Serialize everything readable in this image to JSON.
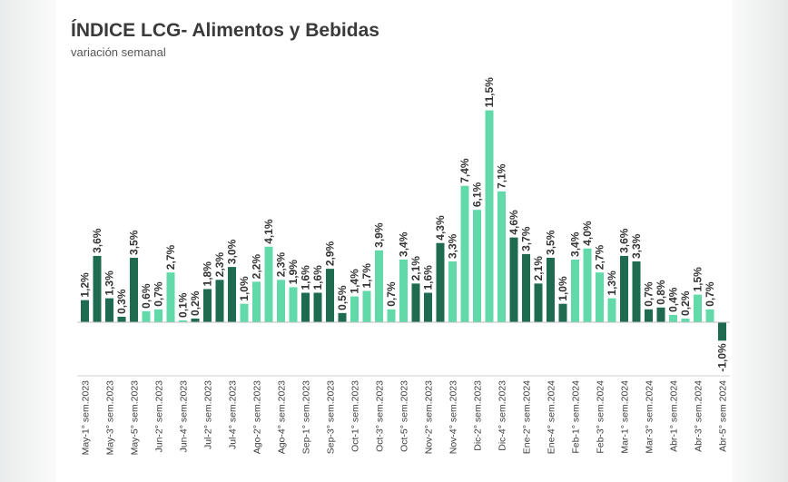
{
  "chart_data": {
    "type": "bar",
    "title": "ÍNDICE LCG- Alimentos y Bebidas",
    "subtitle": "variación semanal",
    "xlabel": "",
    "ylabel": "",
    "ylim": [
      -1.5,
      12
    ],
    "grid": false,
    "legend": "none",
    "colors": {
      "dark": "#1e6b4f",
      "light": "#62d9a9"
    },
    "categories": [
      "May-1° sem.2023",
      "",
      "May-3° sem.2023",
      "",
      "May-5° sem.2023",
      "",
      "Jun-2° sem.2023",
      "",
      "Jun-4° sem.2023",
      "",
      "Jul-2° sem.2023",
      "",
      "Jul-4° sem.2023",
      "",
      "Ago-2° sem.2023",
      "",
      "Ago-4° sem.2023",
      "",
      "Sep-1° sem.2023",
      "",
      "Sep-3° sem.2023",
      "",
      "Oct-1° sem.2023",
      "",
      "Oct-3° sem.2023",
      "",
      "Oct-5° sem.2023",
      "",
      "Nov-2° sem.2023",
      "",
      "Nov-4° sem.2023",
      "",
      "Dic-2° sem.2023",
      "",
      "Dic-4° sem.2023",
      "",
      "Ene-2° sem.2024",
      "",
      "Ene-4° sem.2024",
      "",
      "Feb-1° sem.2024",
      "",
      "Feb-3° sem.2024",
      "",
      "Mar-1° sem.2024",
      "",
      "Mar-3° sem.2024",
      "",
      "Abr-1° sem.2024",
      "",
      "Abr-3° sem.2024",
      "",
      "Abr-5° sem 2024"
    ],
    "values": [
      1.2,
      3.6,
      1.3,
      0.3,
      3.5,
      0.6,
      0.7,
      2.7,
      0.1,
      0.2,
      1.8,
      2.3,
      3.0,
      1.0,
      2.2,
      4.1,
      2.3,
      1.9,
      1.6,
      1.6,
      2.9,
      0.5,
      1.4,
      1.7,
      3.9,
      0.7,
      3.4,
      2.1,
      1.6,
      4.3,
      3.3,
      7.4,
      6.1,
      11.5,
      7.1,
      4.6,
      3.7,
      2.1,
      3.5,
      1.0,
      3.4,
      4.0,
      2.7,
      1.3,
      3.6,
      3.3,
      0.7,
      0.8,
      0.4,
      0.2,
      1.5,
      0.7,
      -1.0
    ],
    "value_labels": [
      "1,2%",
      "3,6%",
      "1,3%",
      "0,3%",
      "3,5%",
      "0,6%",
      "0,7%",
      "2,7%",
      "0,1%",
      "0,2%",
      "1,8%",
      "2,3%",
      "3,0%",
      "1,0%",
      "2,2%",
      "4,1%",
      "2,3%",
      "1,9%",
      "1,6%",
      "1,6%",
      "2,9%",
      "0,5%",
      "1,4%",
      "1,7%",
      "3,9%",
      "0,7%",
      "3,4%",
      "2,1%",
      "1,6%",
      "4,3%",
      "3,3%",
      "7,4%",
      "6,1%",
      "11,5%",
      "7,1%",
      "4,6%",
      "3,7%",
      "2,1%",
      "3,5%",
      "1,0%",
      "3,4%",
      "4,0%",
      "2,7%",
      "1,3%",
      "3,6%",
      "3,3%",
      "0,7%",
      "0,8%",
      "0,4%",
      "0,2%",
      "1,5%",
      "0,7%",
      "-1,0%"
    ],
    "bar_colors": [
      "dark",
      "dark",
      "dark",
      "dark",
      "dark",
      "light",
      "light",
      "light",
      "light",
      "dark",
      "dark",
      "dark",
      "dark",
      "light",
      "light",
      "light",
      "light",
      "light",
      "dark",
      "dark",
      "dark",
      "dark",
      "light",
      "light",
      "light",
      "light",
      "light",
      "dark",
      "dark",
      "dark",
      "light",
      "light",
      "light",
      "light",
      "light",
      "dark",
      "dark",
      "dark",
      "dark",
      "dark",
      "light",
      "light",
      "light",
      "light",
      "dark",
      "dark",
      "dark",
      "dark",
      "light",
      "light",
      "light",
      "light",
      "dark"
    ]
  }
}
